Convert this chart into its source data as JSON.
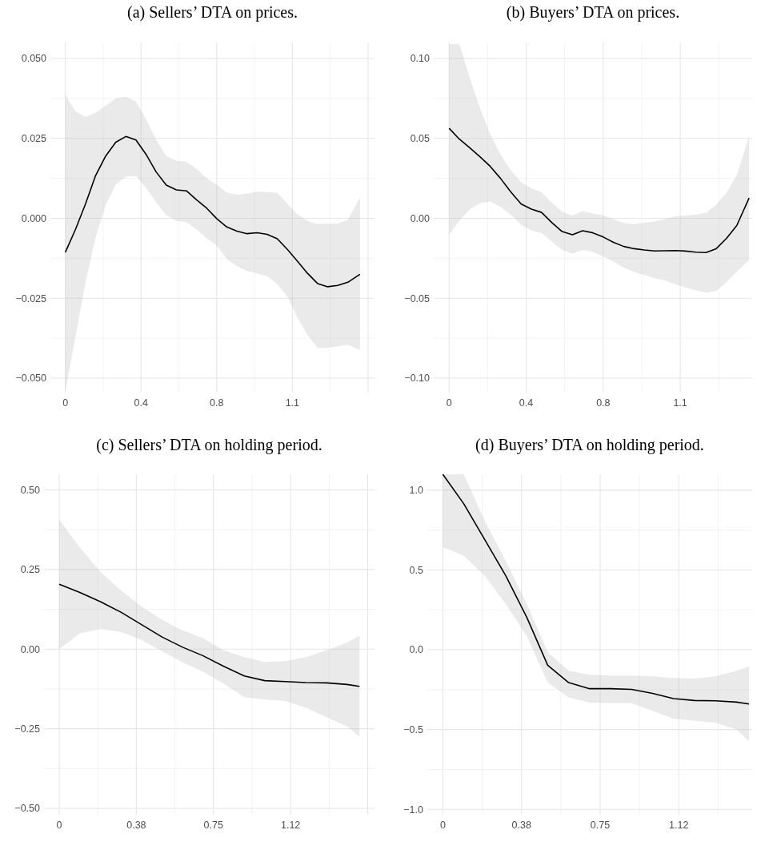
{
  "chart_data": [
    {
      "type": "line",
      "title": "(a) Sellers’ DTA on prices.",
      "x": [
        0,
        0.05,
        0.1,
        0.15,
        0.2,
        0.25,
        0.3,
        0.35,
        0.4,
        0.45,
        0.5,
        0.55,
        0.6,
        0.65,
        0.7,
        0.75,
        0.8,
        0.85,
        0.9,
        0.95,
        1.0,
        1.05,
        1.1,
        1.15,
        1.2,
        1.25,
        1.3,
        1.35,
        1.4,
        1.46
      ],
      "series": [
        {
          "color": "#000000",
          "values": [
            -0.0106,
            -0.0035,
            0.0045,
            0.0134,
            0.0195,
            0.0238,
            0.0256,
            0.0245,
            0.02,
            0.0145,
            0.0104,
            0.0089,
            0.0086,
            0.0058,
            0.0032,
            -0.0001,
            -0.0027,
            -0.004,
            -0.0048,
            -0.0045,
            -0.005,
            -0.0064,
            -0.0097,
            -0.0134,
            -0.0172,
            -0.0204,
            -0.0214,
            -0.021,
            -0.02,
            -0.0175
          ],
          "upper": [
            0.0386,
            0.0335,
            0.0317,
            0.033,
            0.0352,
            0.0375,
            0.038,
            0.0365,
            0.031,
            0.0245,
            0.0195,
            0.018,
            0.0177,
            0.0155,
            0.0125,
            0.0105,
            0.008,
            0.0074,
            0.0077,
            0.0083,
            0.0082,
            0.008,
            0.0046,
            0.0012,
            -0.0008,
            -0.0018,
            -0.0017,
            -0.0016,
            -0.0005,
            0.0065
          ],
          "lower": [
            -0.054,
            -0.037,
            -0.02,
            -0.006,
            0.0042,
            0.0105,
            0.013,
            0.0132,
            0.0095,
            0.005,
            0.001,
            -0.0008,
            -0.0012,
            -0.0035,
            -0.0062,
            -0.0085,
            -0.0127,
            -0.015,
            -0.0165,
            -0.0172,
            -0.0181,
            -0.0206,
            -0.0245,
            -0.031,
            -0.0365,
            -0.0405,
            -0.0405,
            -0.04,
            -0.0395,
            -0.0412
          ]
        }
      ],
      "xlim": [
        -0.074,
        1.532
      ],
      "ylim": [
        -0.0545,
        0.055
      ],
      "xticks": [
        {
          "value": 0,
          "label": "0"
        },
        {
          "value": 0.375,
          "label": "0.4"
        },
        {
          "value": 0.75,
          "label": "0.8"
        },
        {
          "value": 1.125,
          "label": "1.1"
        },
        {
          "value": 1.5,
          "label": null
        }
      ],
      "yticks": [
        {
          "value": -0.05,
          "label": "−0.050"
        },
        {
          "value": -0.025,
          "label": "−0.025"
        },
        {
          "value": 0,
          "label": "0.000"
        },
        {
          "value": 0.025,
          "label": "0.025"
        },
        {
          "value": 0.05,
          "label": "0.050"
        }
      ],
      "grid": true
    },
    {
      "type": "line",
      "title": "(b) Buyers’ DTA on prices.",
      "x": [
        0,
        0.05,
        0.1,
        0.15,
        0.2,
        0.25,
        0.3,
        0.35,
        0.4,
        0.45,
        0.5,
        0.55,
        0.6,
        0.65,
        0.7,
        0.75,
        0.8,
        0.85,
        0.9,
        0.95,
        1.0,
        1.05,
        1.1,
        1.15,
        1.2,
        1.25,
        1.3,
        1.35,
        1.4,
        1.46
      ],
      "series": [
        {
          "color": "#000000",
          "values": [
            0.0563,
            0.0495,
            0.0442,
            0.0385,
            0.0325,
            0.025,
            0.0165,
            0.009,
            0.0058,
            0.0037,
            -0.0027,
            -0.0083,
            -0.0103,
            -0.0078,
            -0.0091,
            -0.0117,
            -0.015,
            -0.0176,
            -0.019,
            -0.0198,
            -0.0204,
            -0.0203,
            -0.0202,
            -0.0205,
            -0.0212,
            -0.0214,
            -0.019,
            -0.0125,
            -0.0045,
            0.0127
          ],
          "upper": [
            0.109,
            0.109,
            0.088,
            0.069,
            0.0525,
            0.04,
            0.03,
            0.0225,
            0.0188,
            0.0163,
            0.0098,
            0.004,
            0.0017,
            0.0045,
            0.003,
            0.0017,
            -0.0005,
            -0.003,
            -0.0036,
            -0.0027,
            -0.002,
            -0.0005,
            0.0012,
            0.0018,
            0.0022,
            0.0035,
            0.0085,
            0.016,
            0.027,
            0.0513
          ],
          "lower": [
            -0.0103,
            -0.0015,
            0.0055,
            0.0095,
            0.0105,
            0.0072,
            0.0022,
            -0.004,
            -0.0076,
            -0.0092,
            -0.0145,
            -0.0198,
            -0.022,
            -0.0198,
            -0.021,
            -0.0238,
            -0.027,
            -0.031,
            -0.0335,
            -0.0355,
            -0.0375,
            -0.039,
            -0.0412,
            -0.0432,
            -0.045,
            -0.0465,
            -0.0455,
            -0.04,
            -0.0335,
            -0.0262
          ]
        }
      ],
      "xlim": [
        -0.075,
        1.475
      ],
      "ylim": [
        -0.109,
        0.11
      ],
      "xticks": [
        {
          "value": 0,
          "label": "0"
        },
        {
          "value": 0.375,
          "label": "0.4"
        },
        {
          "value": 0.75,
          "label": "0.8"
        },
        {
          "value": 1.125,
          "label": "1.1"
        }
      ],
      "yticks": [
        {
          "value": -0.1,
          "label": "−0.10"
        },
        {
          "value": -0.05,
          "label": "−0.05"
        },
        {
          "value": 0,
          "label": "0.00"
        },
        {
          "value": 0.05,
          "label": "0.05"
        },
        {
          "value": 0.1,
          "label": "0.10"
        }
      ],
      "grid": true
    },
    {
      "type": "line",
      "title": "(c) Sellers’ DTA on holding period.",
      "x": [
        0,
        0.1,
        0.2,
        0.3,
        0.4,
        0.5,
        0.6,
        0.7,
        0.8,
        0.9,
        1.0,
        1.1,
        1.2,
        1.3,
        1.4,
        1.46
      ],
      "series": [
        {
          "color": "#000000",
          "values": [
            0.204,
            0.178,
            0.149,
            0.116,
            0.077,
            0.038,
            0.006,
            -0.021,
            -0.054,
            -0.084,
            -0.099,
            -0.102,
            -0.105,
            -0.106,
            -0.111,
            -0.117
          ],
          "upper": [
            0.407,
            0.319,
            0.243,
            0.184,
            0.134,
            0.092,
            0.059,
            0.034,
            -0.004,
            -0.025,
            -0.04,
            -0.038,
            -0.025,
            -0.004,
            0.021,
            0.042
          ],
          "lower": [
            0.0,
            0.05,
            0.063,
            0.054,
            0.029,
            -0.007,
            -0.042,
            -0.071,
            -0.109,
            -0.151,
            -0.158,
            -0.163,
            -0.184,
            -0.214,
            -0.243,
            -0.275
          ]
        }
      ],
      "xlim": [
        -0.074,
        1.533
      ],
      "ylim": [
        -0.52,
        0.549
      ],
      "xticks": [
        {
          "value": 0,
          "label": "0"
        },
        {
          "value": 0.375,
          "label": "0.38"
        },
        {
          "value": 0.75,
          "label": "0.75"
        },
        {
          "value": 1.125,
          "label": "1.12"
        },
        {
          "value": 1.5,
          "label": null
        }
      ],
      "yticks": [
        {
          "value": -0.5,
          "label": "−0.50"
        },
        {
          "value": -0.25,
          "label": "−0.25"
        },
        {
          "value": 0,
          "label": "0.00"
        },
        {
          "value": 0.25,
          "label": "0.25"
        },
        {
          "value": 0.5,
          "label": "0.50"
        }
      ],
      "grid": true
    },
    {
      "type": "line",
      "title": "(d) Buyers’ DTA on holding period.",
      "x": [
        0,
        0.1,
        0.2,
        0.3,
        0.4,
        0.5,
        0.6,
        0.7,
        0.8,
        0.9,
        1.0,
        1.1,
        1.2,
        1.3,
        1.4,
        1.46
      ],
      "series": [
        {
          "color": "#000000",
          "values": [
            1.1,
            0.915,
            0.69,
            0.464,
            0.204,
            -0.097,
            -0.206,
            -0.244,
            -0.244,
            -0.248,
            -0.273,
            -0.306,
            -0.318,
            -0.32,
            -0.328,
            -0.34
          ],
          "upper": [
            1.1,
            1.1,
            0.807,
            0.556,
            0.288,
            -0.013,
            -0.131,
            -0.156,
            -0.161,
            -0.161,
            -0.167,
            -0.177,
            -0.181,
            -0.167,
            -0.131,
            -0.105
          ],
          "lower": [
            0.643,
            0.589,
            0.464,
            0.288,
            0.087,
            -0.206,
            -0.298,
            -0.331,
            -0.335,
            -0.335,
            -0.382,
            -0.432,
            -0.445,
            -0.457,
            -0.499,
            -0.574
          ]
        }
      ],
      "xlim": [
        -0.074,
        1.475
      ],
      "ylim": [
        -1.034,
        1.1
      ],
      "xticks": [
        {
          "value": 0,
          "label": "0"
        },
        {
          "value": 0.375,
          "label": "0.38"
        },
        {
          "value": 0.75,
          "label": "0.75"
        },
        {
          "value": 1.125,
          "label": "1.12"
        }
      ],
      "yticks": [
        {
          "value": -1,
          "label": "−1.0"
        },
        {
          "value": -0.5,
          "label": "−0.5"
        },
        {
          "value": 0,
          "label": "0.0"
        },
        {
          "value": 0.5,
          "label": "0.5"
        },
        {
          "value": 1,
          "label": "1.0"
        }
      ],
      "grid": true
    }
  ]
}
